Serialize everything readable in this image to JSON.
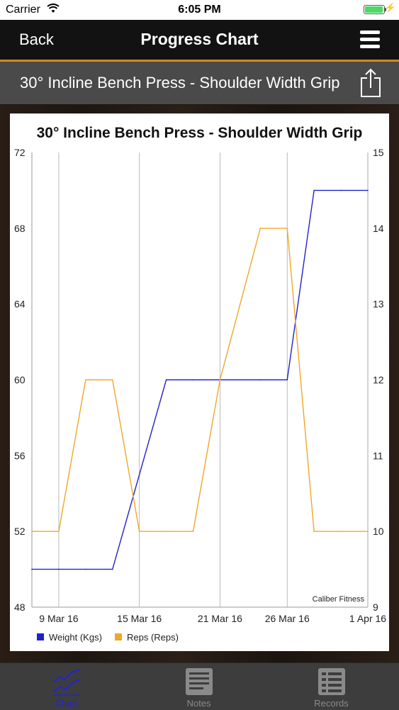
{
  "status_bar": {
    "carrier": "Carrier",
    "time": "6:05 PM"
  },
  "nav": {
    "back_label": "Back",
    "title": "Progress Chart"
  },
  "exercise": {
    "title": "30° Incline Bench Press - Shoulder Width Grip"
  },
  "colors": {
    "weight_series": "#2222cc",
    "reps_series": "#f0a72a",
    "accent": "#d08a1c"
  },
  "chart_data": {
    "type": "line",
    "title": "30° Incline Bench Press - Shoulder Width Grip",
    "watermark": "Caliber Fitness",
    "x_ticks": [
      "9 Mar 16",
      "15 Mar 16",
      "21 Mar 16",
      "26 Mar 16",
      "1 Apr 16"
    ],
    "y_left": {
      "ticks": [
        "72",
        "68",
        "64",
        "60",
        "56",
        "52",
        "48"
      ],
      "ylim": [
        48,
        72
      ]
    },
    "y_right": {
      "ticks": [
        "15",
        "14",
        "13",
        "12",
        "11",
        "10",
        "9"
      ],
      "ylim": [
        9,
        15
      ]
    },
    "grid": "vertical",
    "legend_position": "bottom-left",
    "series": [
      {
        "name": "Weight (Kgs)",
        "axis": "left",
        "color": "#2222cc",
        "x": [
          "7 Mar 16",
          "9 Mar 16",
          "11 Mar 16",
          "13 Mar 16",
          "15 Mar 16",
          "17 Mar 16",
          "19 Mar 16",
          "21 Mar 16",
          "24 Mar 16",
          "26 Mar 16",
          "28 Mar 16",
          "30 Mar 16",
          "1 Apr 16"
        ],
        "values": [
          50,
          50,
          50,
          50,
          55,
          60,
          60,
          60,
          60,
          60,
          70,
          70,
          70
        ]
      },
      {
        "name": "Reps (Reps)",
        "axis": "right",
        "color": "#f0a72a",
        "x": [
          "7 Mar 16",
          "9 Mar 16",
          "11 Mar 16",
          "13 Mar 16",
          "15 Mar 16",
          "17 Mar 16",
          "19 Mar 16",
          "21 Mar 16",
          "24 Mar 16",
          "26 Mar 16",
          "28 Mar 16",
          "30 Mar 16",
          "1 Apr 16"
        ],
        "values": [
          10,
          10,
          12,
          12,
          10,
          10,
          10,
          12,
          14,
          14,
          10,
          10,
          10
        ]
      }
    ]
  },
  "tabs": [
    {
      "label": "Chart",
      "active": true
    },
    {
      "label": "Notes",
      "active": false
    },
    {
      "label": "Records",
      "active": false
    }
  ]
}
